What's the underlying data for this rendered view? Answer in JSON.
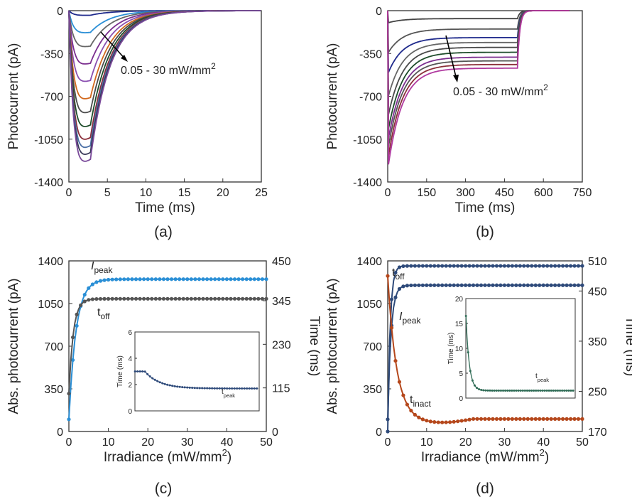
{
  "chart_data": [
    {
      "panel": "a",
      "type": "line",
      "caption": "(a)",
      "xlabel": "Time (ms)",
      "ylabel": "Photocurrent (pA)",
      "xlim": [
        0,
        25
      ],
      "ylim": [
        -1400,
        0
      ],
      "xticks": [
        0,
        5,
        10,
        15,
        20,
        25
      ],
      "yticks": [
        0,
        -350,
        -700,
        -1050,
        -1400
      ],
      "annotation": "0.05 - 30 mW/mm",
      "annotation_sup": "2",
      "stim_end": 2.8,
      "series": [
        {
          "peak": -40,
          "color": "#1f2a8c"
        },
        {
          "peak": -190,
          "color": "#2a8fd6"
        },
        {
          "peak": -310,
          "color": "#666666"
        },
        {
          "peak": -460,
          "color": "#7b2f8f"
        },
        {
          "peak": -610,
          "color": "#8a4fb0"
        },
        {
          "peak": -760,
          "color": "#d2691e"
        },
        {
          "peak": -880,
          "color": "#4a4a4a"
        },
        {
          "peak": -1000,
          "color": "#1e4d2b"
        },
        {
          "peak": -1110,
          "color": "#8b2f3a"
        },
        {
          "peak": -1180,
          "color": "#4a6fa5"
        },
        {
          "peak": -1240,
          "color": "#3a3a5a"
        },
        {
          "peak": -1300,
          "color": "#7a4a9a"
        }
      ]
    },
    {
      "panel": "b",
      "type": "line",
      "caption": "(b)",
      "xlabel": "Time (ms)",
      "ylabel": "Photocurrent (pA)",
      "xlim": [
        0,
        750
      ],
      "ylim": [
        -1400,
        0
      ],
      "xticks": [
        0,
        150,
        300,
        450,
        600,
        750
      ],
      "yticks": [
        0,
        -350,
        -700,
        -1050,
        -1400
      ],
      "annotation": "0.05 - 30 mW/mm",
      "annotation_sup": "2",
      "stim_end": 500,
      "series": [
        {
          "peak": -100,
          "steady": -65,
          "color": "#444444"
        },
        {
          "peak": -350,
          "steady": -150,
          "color": "#555555"
        },
        {
          "peak": -520,
          "steady": -220,
          "color": "#1f2a8c"
        },
        {
          "peak": -720,
          "steady": -260,
          "color": "#666666"
        },
        {
          "peak": -880,
          "steady": -300,
          "color": "#4a4a4a"
        },
        {
          "peak": -1000,
          "steady": -340,
          "color": "#1e4d2b"
        },
        {
          "peak": -1080,
          "steady": -380,
          "color": "#7b2f8f"
        },
        {
          "peak": -1150,
          "steady": -410,
          "color": "#555555"
        },
        {
          "peak": -1230,
          "steady": -440,
          "color": "#8b2f3a"
        },
        {
          "peak": -1300,
          "steady": -470,
          "color": "#b03aa0"
        }
      ]
    },
    {
      "panel": "c",
      "type": "line",
      "caption": "(c)",
      "xlabel": "Irradiance (mW/mm",
      "xlabel_sup": "2",
      "xlabel_end": ")",
      "ylabel": "Abs. photocurrent (pA)",
      "ylabel_right": "Time (ms)",
      "xlim": [
        0,
        50
      ],
      "ylim": [
        0,
        1400
      ],
      "ylim_right": [
        0,
        450
      ],
      "xticks": [
        0,
        10,
        20,
        30,
        40,
        50
      ],
      "yticks": [
        0,
        350,
        700,
        1050,
        1400
      ],
      "yticks_right": [
        0,
        115,
        230,
        345,
        450
      ],
      "series": [
        {
          "name": "I",
          "sub": "peak",
          "color": "#2a8fd6",
          "axis": "left",
          "start": 100,
          "plateau": 1250,
          "k": 0.55,
          "ilabel": true
        },
        {
          "name": "t",
          "sub": "off",
          "color": "#555555",
          "axis": "right",
          "start": 100,
          "plateau": 350,
          "k": 0.9
        }
      ],
      "inset": {
        "xlim": [
          0,
          50
        ],
        "ylim": [
          0,
          6
        ],
        "yticks": [
          0,
          2,
          4,
          6
        ],
        "ylabel": "Time (ms)",
        "label": "t",
        "label_sub": "peak",
        "color": "#2e4a7a",
        "start": 3.0,
        "end": 1.7,
        "hold": 4
      }
    },
    {
      "panel": "d",
      "type": "line",
      "caption": "(d)",
      "xlabel": "Irradiance (mW/mm",
      "xlabel_sup": "2",
      "xlabel_end": ")",
      "ylabel": "Abs. photocurrent (pA)",
      "ylabel_right": "Time (ms)",
      "xlim": [
        0,
        50
      ],
      "ylim": [
        0,
        1400
      ],
      "ylim_right": [
        170,
        510
      ],
      "xticks": [
        0,
        10,
        20,
        30,
        40,
        50
      ],
      "yticks": [
        0,
        350,
        700,
        1050,
        1400
      ],
      "yticks_right": [
        170,
        250,
        350,
        450,
        510
      ],
      "series": [
        {
          "name": "t",
          "sub": "off",
          "color": "#2e4a7a",
          "axis": "right",
          "start": 170,
          "plateau": 500,
          "k": 1.6
        },
        {
          "name": "I",
          "sub": "peak",
          "color": "#2e4a7a",
          "axis": "left",
          "start": 100,
          "plateau": 1200,
          "k": 1.2,
          "ilabel": true
        },
        {
          "name": "t",
          "sub": "inact",
          "color": "#b5471b",
          "axis": "right",
          "start": 480,
          "plateau": 195,
          "k": 0.45
        }
      ],
      "inset": {
        "xlim": [
          0,
          50
        ],
        "ylim": [
          0,
          20
        ],
        "yticks": [
          0,
          5,
          10,
          15,
          20
        ],
        "ylabel": "Time (ms)",
        "label": "t",
        "label_sub": "peak",
        "color": "#2e6b55",
        "start": 17,
        "end": 1.5,
        "hold": 0
      }
    }
  ]
}
